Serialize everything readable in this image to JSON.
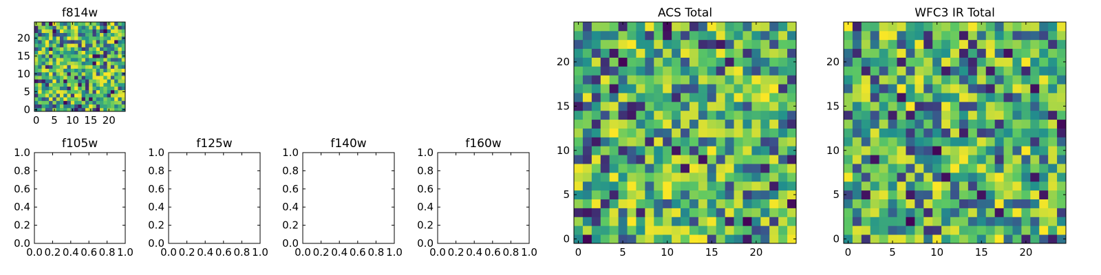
{
  "figure": {
    "background": "#ffffff",
    "colormap": "viridis"
  },
  "chart_data": [
    {
      "id": "f814w",
      "type": "heatmap",
      "title": "f814w",
      "xlabel": "",
      "ylabel": "",
      "xlim": [
        -0.5,
        24.5
      ],
      "ylim": [
        -0.5,
        24.5
      ],
      "xticks": [
        0,
        5,
        10,
        15,
        20
      ],
      "yticks": [
        0,
        5,
        10,
        15,
        20
      ],
      "xticklabels": [
        "0",
        "5",
        "10",
        "15",
        "20"
      ],
      "yticklabels": [
        "0",
        "5",
        "10",
        "15",
        "20"
      ],
      "grid": false,
      "rows": 25,
      "cols": 25,
      "seed": 11
    },
    {
      "id": "f105w",
      "type": "scatter",
      "title": "f105w",
      "xlabel": "",
      "ylabel": "",
      "xlim": [
        0,
        1
      ],
      "ylim": [
        0,
        1
      ],
      "xticks": [
        0,
        0.2,
        0.4,
        0.6,
        0.8,
        1.0
      ],
      "yticks": [
        0,
        0.2,
        0.4,
        0.6,
        0.8,
        1.0
      ],
      "xticklabels": [
        "0.0",
        "0.2",
        "0.4",
        "0.6",
        "0.8",
        "1.0"
      ],
      "yticklabels": [
        "0.0",
        "0.2",
        "0.4",
        "0.6",
        "0.8",
        "1.0"
      ],
      "grid": false,
      "series": []
    },
    {
      "id": "f125w",
      "type": "scatter",
      "title": "f125w",
      "xlabel": "",
      "ylabel": "",
      "xlim": [
        0,
        1
      ],
      "ylim": [
        0,
        1
      ],
      "xticks": [
        0,
        0.2,
        0.4,
        0.6,
        0.8,
        1.0
      ],
      "yticks": [
        0,
        0.2,
        0.4,
        0.6,
        0.8,
        1.0
      ],
      "xticklabels": [
        "0.0",
        "0.2",
        "0.4",
        "0.6",
        "0.8",
        "1.0"
      ],
      "yticklabels": [
        "0.0",
        "0.2",
        "0.4",
        "0.6",
        "0.8",
        "1.0"
      ],
      "grid": false,
      "series": []
    },
    {
      "id": "f140w",
      "type": "scatter",
      "title": "f140w",
      "xlabel": "",
      "ylabel": "",
      "xlim": [
        0,
        1
      ],
      "ylim": [
        0,
        1
      ],
      "xticks": [
        0,
        0.2,
        0.4,
        0.6,
        0.8,
        1.0
      ],
      "yticks": [
        0,
        0.2,
        0.4,
        0.6,
        0.8,
        1.0
      ],
      "xticklabels": [
        "0.0",
        "0.2",
        "0.4",
        "0.6",
        "0.8",
        "1.0"
      ],
      "yticklabels": [
        "0.0",
        "0.2",
        "0.4",
        "0.6",
        "0.8",
        "1.0"
      ],
      "grid": false,
      "series": []
    },
    {
      "id": "f160w",
      "type": "scatter",
      "title": "f160w",
      "xlabel": "",
      "ylabel": "",
      "xlim": [
        0,
        1
      ],
      "ylim": [
        0,
        1
      ],
      "xticks": [
        0,
        0.2,
        0.4,
        0.6,
        0.8,
        1.0
      ],
      "yticks": [
        0,
        0.2,
        0.4,
        0.6,
        0.8,
        1.0
      ],
      "xticklabels": [
        "0.0",
        "0.2",
        "0.4",
        "0.6",
        "0.8",
        "1.0"
      ],
      "yticklabels": [
        "0.0",
        "0.2",
        "0.4",
        "0.6",
        "0.8",
        "1.0"
      ],
      "grid": false,
      "series": []
    },
    {
      "id": "acs-total",
      "type": "heatmap",
      "title": "ACS Total",
      "xlabel": "",
      "ylabel": "",
      "xlim": [
        -0.5,
        24.5
      ],
      "ylim": [
        -0.5,
        24.5
      ],
      "xticks": [
        0,
        5,
        10,
        15,
        20
      ],
      "yticks": [
        0,
        5,
        10,
        15,
        20
      ],
      "xticklabels": [
        "0",
        "5",
        "10",
        "15",
        "20"
      ],
      "yticklabels": [
        "0",
        "5",
        "10",
        "15",
        "20"
      ],
      "grid": false,
      "rows": 25,
      "cols": 25,
      "seed": 37
    },
    {
      "id": "wfc3-ir-total",
      "type": "heatmap",
      "title": "WFC3 IR Total",
      "xlabel": "",
      "ylabel": "",
      "xlim": [
        -0.5,
        24.5
      ],
      "ylim": [
        -0.5,
        24.5
      ],
      "xticks": [
        0,
        5,
        10,
        15,
        20
      ],
      "yticks": [
        0,
        5,
        10,
        15,
        20
      ],
      "xticklabels": [
        "0",
        "5",
        "10",
        "15",
        "20"
      ],
      "yticklabels": [
        "0",
        "5",
        "10",
        "15",
        "20"
      ],
      "grid": false,
      "rows": 25,
      "cols": 25,
      "seed": 73
    }
  ]
}
